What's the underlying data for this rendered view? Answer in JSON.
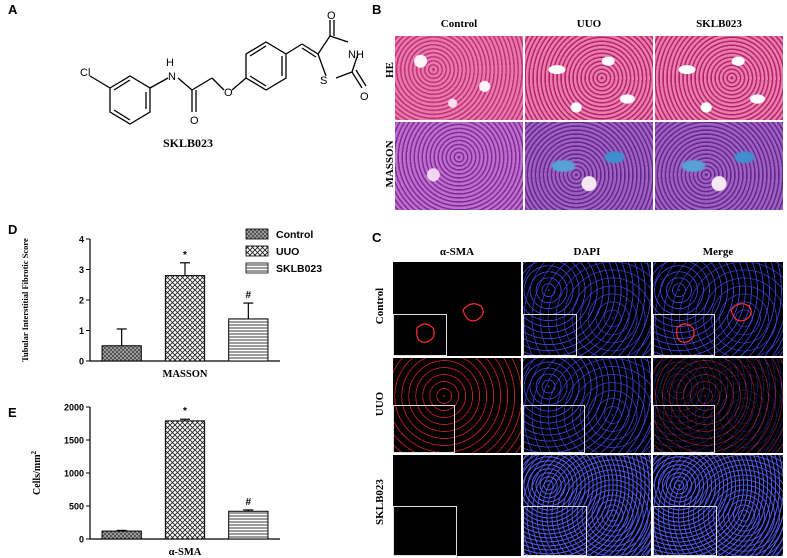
{
  "panels": {
    "A": "A",
    "B": "B",
    "C": "C",
    "D": "D",
    "E": "E"
  },
  "structure": {
    "name": "SKLB023",
    "atom_cl": "Cl",
    "atom_h": "H",
    "atom_n": "N",
    "atom_o": "O",
    "atom_s": "S",
    "atom_nh": "NH"
  },
  "histology": {
    "columns": [
      "Control",
      "UUO",
      "SKLB023"
    ],
    "rows": [
      "HE",
      "MASSON"
    ]
  },
  "immuno": {
    "columns": [
      "α-SMA",
      "DAPI",
      "Merge"
    ],
    "rows": [
      "Control",
      "UUO",
      "SKLB023"
    ]
  },
  "colors": {
    "he_pink": "#e06aa3",
    "masson_purple": "#b15fc2",
    "masson_blue": "#3f8fd0",
    "alpha_sma_red": "#e62828",
    "dapi_blue": "#3c46e6"
  },
  "chart_data": [
    {
      "type": "bar",
      "panel": "D",
      "categories": [
        "Control",
        "UUO",
        "SKLB023"
      ],
      "values": [
        0.5,
        2.8,
        1.38
      ],
      "errors": [
        0.55,
        0.42,
        0.52
      ],
      "annotations": [
        "",
        "*",
        "#"
      ],
      "xlabel": "MASSON",
      "ylabel": "Tubular Interstitial Fibrotic Score",
      "ylim": [
        0,
        4
      ],
      "yticks": [
        "0",
        "1",
        "2",
        "3",
        "4"
      ],
      "legend": [
        "Control",
        "UUO",
        "SKLB023"
      ],
      "legend_position": "top-right",
      "patterns": [
        "dotted",
        "crosshatch",
        "horizontal-lines"
      ]
    },
    {
      "type": "bar",
      "panel": "E",
      "categories": [
        "Control",
        "UUO",
        "SKLB023"
      ],
      "values": [
        120,
        1790,
        420
      ],
      "errors": [
        10,
        25,
        20
      ],
      "annotations": [
        "",
        "*",
        "#"
      ],
      "xlabel": "α-SMA",
      "ylabel": "Cells/mm",
      "ylabel_superscript": "2",
      "ylim": [
        0,
        2000
      ],
      "yticks": [
        "0",
        "500",
        "1000",
        "1500",
        "2000"
      ],
      "patterns": [
        "dotted",
        "crosshatch",
        "horizontal-lines"
      ]
    }
  ]
}
